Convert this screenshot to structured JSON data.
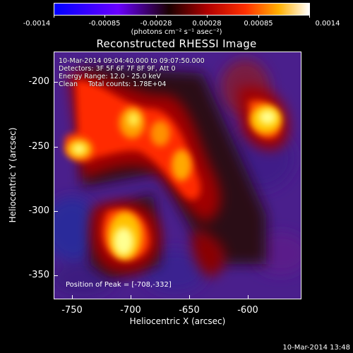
{
  "colorbar": {
    "tick_labels": [
      "-0.0014",
      "-0.00085",
      "-0.00028",
      "0.00028",
      "0.00085",
      "0.0014"
    ],
    "units_text": "(photons cm⁻² s⁻¹ asec⁻²)",
    "min": -0.0014,
    "max": 0.0014
  },
  "title": "Reconstructed RHESSI Image",
  "info": {
    "time_range": "10-Mar-2014 09:04:40.000 to 09:07:50.000",
    "detectors": "Detectors: 3F 5F 6F 7F 8F 9F, Att 0",
    "energy": "Energy Range: 12.0 - 25.0 keV",
    "clean": "Clean     Total counts: 1.78E+04"
  },
  "peak_text": "Position of Peak = [-708,-332]",
  "axes": {
    "xlabel": "Heliocentric X (arcsec)",
    "ylabel": "Heliocentric Y (arcsec)",
    "x_ticks": [
      "-750",
      "-700",
      "-650",
      "-600"
    ],
    "y_ticks": [
      "-200",
      "-250",
      "-300",
      "-350"
    ],
    "xlim": [
      -764,
      -630
    ],
    "ylim": [
      -371,
      -182
    ]
  },
  "footer": "10-Mar-2014 13:48"
}
